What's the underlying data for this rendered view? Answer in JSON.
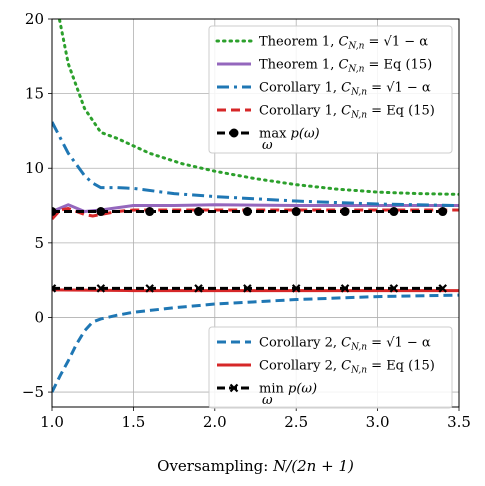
{
  "chart_data": {
    "type": "line",
    "title": "",
    "xlabel": "Oversampling: N/(2n + 1)",
    "ylabel": "",
    "xlim": [
      1.0,
      3.5
    ],
    "ylim": [
      -6,
      20
    ],
    "xticks": [
      1.0,
      1.5,
      2.0,
      2.5,
      3.0,
      3.5
    ],
    "xtick_labels": [
      "1.0",
      "1.5",
      "2.0",
      "2.5",
      "3.0",
      "3.5"
    ],
    "yticks": [
      -5,
      0,
      5,
      10,
      15,
      20
    ],
    "ytick_labels": [
      "−5",
      "0",
      "5",
      "10",
      "15",
      "20"
    ],
    "grid": true,
    "legend_placement": [
      "top-right",
      "bottom-right"
    ],
    "series": [
      {
        "name": "Theorem 1, C_{N,n} = √(1 − α)",
        "legend_main": "Theorem 1, ",
        "legend_math": "C",
        "legend_sub": "N,n",
        "legend_rest": " = √1 − α",
        "color": "#2ca02c",
        "style": "dotted",
        "marker": "none",
        "legend_group": 0,
        "x": [
          1.0,
          1.1,
          1.2,
          1.3,
          1.4,
          1.5,
          1.6,
          1.8,
          2.0,
          2.25,
          2.5,
          2.75,
          3.0,
          3.25,
          3.5
        ],
        "y": [
          22.5,
          17.0,
          14.0,
          12.4,
          12.0,
          11.5,
          11.0,
          10.3,
          9.8,
          9.3,
          8.9,
          8.6,
          8.4,
          8.3,
          8.25
        ]
      },
      {
        "name": "Theorem 1, C_{N,n} = Eq (15)",
        "legend_main": "Theorem 1, ",
        "legend_math": "C",
        "legend_sub": "N,n",
        "legend_rest": " = Eq (15)",
        "color": "#9467bd",
        "style": "solid",
        "marker": "none",
        "legend_group": 0,
        "x": [
          1.0,
          1.1,
          1.2,
          1.3,
          1.4,
          1.5,
          1.75,
          2.0,
          2.5,
          3.0,
          3.5
        ],
        "y": [
          7.1,
          7.55,
          7.1,
          7.2,
          7.35,
          7.5,
          7.5,
          7.55,
          7.5,
          7.5,
          7.5
        ]
      },
      {
        "name": "Corollary 1, C_{N,n} = √(1 − α)",
        "legend_main": "Corollary 1, ",
        "legend_math": "C",
        "legend_sub": "N,n",
        "legend_rest": " = √1 − α",
        "color": "#1f77b4",
        "style": "dashdot",
        "marker": "none",
        "legend_group": 0,
        "x": [
          1.0,
          1.1,
          1.2,
          1.25,
          1.3,
          1.4,
          1.5,
          1.75,
          2.0,
          2.5,
          3.0,
          3.5
        ],
        "y": [
          13.1,
          11.0,
          9.5,
          9.0,
          8.7,
          8.7,
          8.65,
          8.3,
          8.1,
          7.8,
          7.6,
          7.5
        ]
      },
      {
        "name": "Corollary 1, C_{N,n} = Eq (15)",
        "legend_main": "Corollary 1, ",
        "legend_math": "C",
        "legend_sub": "N,n",
        "legend_rest": " = Eq (15)",
        "color": "#d62728",
        "style": "dashed",
        "marker": "none",
        "legend_group": 0,
        "x": [
          1.0,
          1.05,
          1.1,
          1.2,
          1.25,
          1.3,
          1.4,
          1.5,
          2.0,
          2.5,
          3.0,
          3.5
        ],
        "y": [
          6.6,
          7.2,
          7.3,
          6.9,
          6.8,
          6.9,
          7.1,
          7.2,
          7.2,
          7.2,
          7.2,
          7.2
        ]
      },
      {
        "name": "max_ω p(ω)",
        "legend_main": "max",
        "legend_math": "p(ω)",
        "legend_sub": "ω",
        "legend_rest": "",
        "color": "#000000",
        "style": "dashed-heavy",
        "marker": "circle",
        "legend_group": 0,
        "x": [
          1.0,
          1.3,
          1.6,
          1.9,
          2.2,
          2.5,
          2.8,
          3.1,
          3.4
        ],
        "y": [
          7.1,
          7.1,
          7.1,
          7.1,
          7.1,
          7.1,
          7.1,
          7.1,
          7.1
        ]
      },
      {
        "name": "Corollary 2, C_{N,n} = √(1 − α)",
        "legend_main": "Corollary 2, ",
        "legend_math": "C",
        "legend_sub": "N,n",
        "legend_rest": " = √1 − α",
        "color": "#1f77b4",
        "style": "dashed",
        "marker": "none",
        "legend_group": 1,
        "x": [
          1.0,
          1.05,
          1.1,
          1.15,
          1.2,
          1.25,
          1.3,
          1.4,
          1.5,
          1.75,
          2.0,
          2.5,
          3.0,
          3.5
        ],
        "y": [
          -5.0,
          -3.9,
          -2.9,
          -1.8,
          -0.9,
          -0.3,
          -0.1,
          0.15,
          0.35,
          0.65,
          0.9,
          1.2,
          1.4,
          1.5
        ]
      },
      {
        "name": "Corollary 2, C_{N,n} = Eq (15)",
        "legend_main": "Corollary 2, ",
        "legend_math": "C",
        "legend_sub": "N,n",
        "legend_rest": " = Eq (15)",
        "color": "#d62728",
        "style": "solid",
        "marker": "none",
        "legend_group": 1,
        "x": [
          1.0,
          1.5,
          2.0,
          2.5,
          3.0,
          3.5
        ],
        "y": [
          1.85,
          1.8,
          1.8,
          1.8,
          1.8,
          1.8
        ]
      },
      {
        "name": "min_ω p(ω)",
        "legend_main": "min",
        "legend_math": "p(ω)",
        "legend_sub": "ω",
        "legend_rest": "",
        "color": "#000000",
        "style": "dashed-heavy",
        "marker": "x",
        "legend_group": 1,
        "x": [
          1.0,
          1.3,
          1.6,
          1.9,
          2.2,
          2.5,
          2.8,
          3.1,
          3.4
        ],
        "y": [
          1.95,
          1.95,
          1.95,
          1.95,
          1.95,
          1.95,
          1.95,
          1.95,
          1.95
        ]
      }
    ]
  }
}
